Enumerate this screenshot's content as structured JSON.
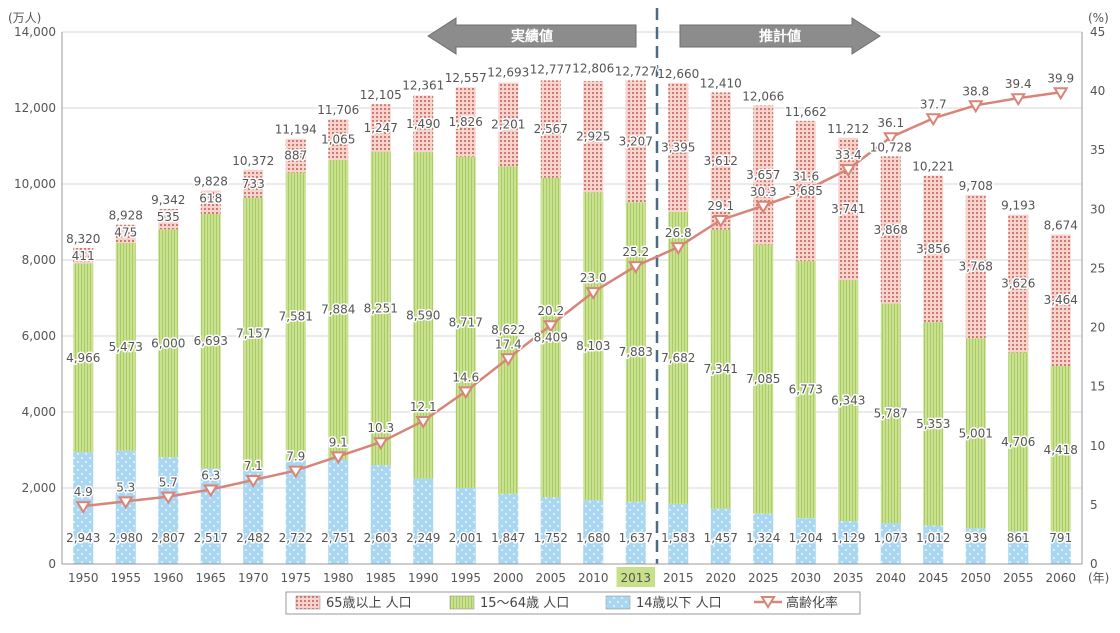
{
  "chart_data": {
    "type": "bar",
    "left_unit": "(万人)",
    "right_unit": "(%)",
    "x_unit": "(年)",
    "y_left_lim": [
      0,
      14000
    ],
    "y_left_ticks": [
      "0",
      "2,000",
      "4,000",
      "6,000",
      "8,000",
      "10,000",
      "12,000",
      "14,000"
    ],
    "y_right_lim": [
      0,
      45
    ],
    "y_right_ticks": [
      "0",
      "5",
      "10",
      "15",
      "20",
      "25",
      "30",
      "35",
      "40",
      "45"
    ],
    "categories": [
      "1950",
      "1955",
      "1960",
      "1965",
      "1970",
      "1975",
      "1980",
      "1985",
      "1990",
      "1995",
      "2000",
      "2005",
      "2010",
      "2013",
      "2015",
      "2020",
      "2025",
      "2030",
      "2035",
      "2040",
      "2045",
      "2050",
      "2055",
      "2060"
    ],
    "highlight_category": "2013",
    "series": [
      {
        "name": "14歳以下 人口",
        "values": [
          2943,
          2980,
          2807,
          2517,
          2482,
          2722,
          2751,
          2603,
          2249,
          2001,
          1847,
          1752,
          1680,
          1637,
          1583,
          1457,
          1324,
          1204,
          1129,
          1073,
          1012,
          939,
          861,
          791
        ],
        "labels": [
          "2,943",
          "2,980",
          "2,807",
          "2,517",
          "2,482",
          "2,722",
          "2,751",
          "2,603",
          "2,249",
          "2,001",
          "1,847",
          "1,752",
          "1,680",
          "1,637",
          "1,583",
          "1,457",
          "1,324",
          "1,204",
          "1,129",
          "1,073",
          "1,012",
          "939",
          "861",
          "791"
        ]
      },
      {
        "name": "15～64歳 人口",
        "values": [
          4966,
          5473,
          6000,
          6693,
          7157,
          7581,
          7884,
          8251,
          8590,
          8717,
          8622,
          8409,
          8103,
          7883,
          7682,
          7341,
          7085,
          6773,
          6343,
          5787,
          5353,
          5001,
          4706,
          4418
        ],
        "labels": [
          "4,966",
          "5,473",
          "6,000",
          "6,693",
          "7,157",
          "7,581",
          "7,884",
          "8,251",
          "8,590",
          "8,717",
          "8,622",
          "8,409",
          "8,103",
          "7,883",
          "7,682",
          "7,341",
          "7,085",
          "6,773",
          "6,343",
          "5,787",
          "5,353",
          "5,001",
          "4,706",
          "4,418"
        ]
      },
      {
        "name": "65歳以上 人口",
        "values": [
          411,
          475,
          535,
          618,
          733,
          887,
          1065,
          1247,
          1490,
          1826,
          2201,
          2567,
          2925,
          3207,
          3395,
          3612,
          3657,
          3685,
          3741,
          3868,
          3856,
          3768,
          3626,
          3464
        ],
        "labels": [
          "411",
          "475",
          "535",
          "618",
          "733",
          "887",
          "1,065",
          "1,247",
          "1,490",
          "1,826",
          "2,201",
          "2,567",
          "2,925",
          "3,207",
          "3,395",
          "3,612",
          "3,657",
          "3,685",
          "3,741",
          "3,868",
          "3,856",
          "3,768",
          "3,626",
          "3,464"
        ]
      }
    ],
    "totals": [
      "8,320",
      "8,928",
      "9,342",
      "9,828",
      "10,372",
      "11,194",
      "11,706",
      "12,105",
      "12,361",
      "12,557",
      "12,693",
      "12,777",
      "12,806",
      "12,727",
      "12,660",
      "12,410",
      "12,066",
      "11,662",
      "11,212",
      "10,728",
      "10,221",
      "9,708",
      "9,193",
      "8,674"
    ],
    "total_values": [
      8320,
      8928,
      9342,
      9828,
      10372,
      11194,
      11706,
      12105,
      12361,
      12557,
      12693,
      12777,
      12806,
      12727,
      12660,
      12410,
      12066,
      11662,
      11212,
      10728,
      10221,
      9708,
      9193,
      8674
    ],
    "line_series": {
      "name": "高齢化率",
      "values": [
        4.9,
        5.3,
        5.7,
        6.3,
        7.1,
        7.9,
        9.1,
        10.3,
        12.1,
        14.6,
        17.4,
        20.2,
        23.0,
        25.2,
        26.8,
        29.1,
        30.3,
        31.6,
        33.4,
        36.1,
        37.7,
        38.8,
        39.4,
        39.9
      ],
      "labels": [
        "4.9",
        "5.3",
        "5.7",
        "6.3",
        "7.1",
        "7.9",
        "9.1",
        "10.3",
        "12.1",
        "14.6",
        "17.4",
        "20.2",
        "23.0",
        "25.2",
        "26.8",
        "29.1",
        "30.3",
        "31.6",
        "33.4",
        "36.1",
        "37.7",
        "38.8",
        "39.4",
        "39.9"
      ]
    },
    "arrows": {
      "actual": "実績値",
      "estimate": "推計値"
    },
    "legend": {
      "placement": "bottom",
      "items": [
        "65歳以上 人口",
        "15～64歳 人口",
        "14歳以下 人口",
        "高齢化率"
      ]
    },
    "colors": {
      "under14": "#a9d6f0",
      "age15_64": "#c5e08a",
      "over65": "#f4c6c0",
      "over65_dot": "#c96a5f",
      "line": "#d88578",
      "highlight": "#c9e08a",
      "arrow": "#8c8c8c",
      "dash": "#4c6b83",
      "text": "#555555"
    }
  }
}
